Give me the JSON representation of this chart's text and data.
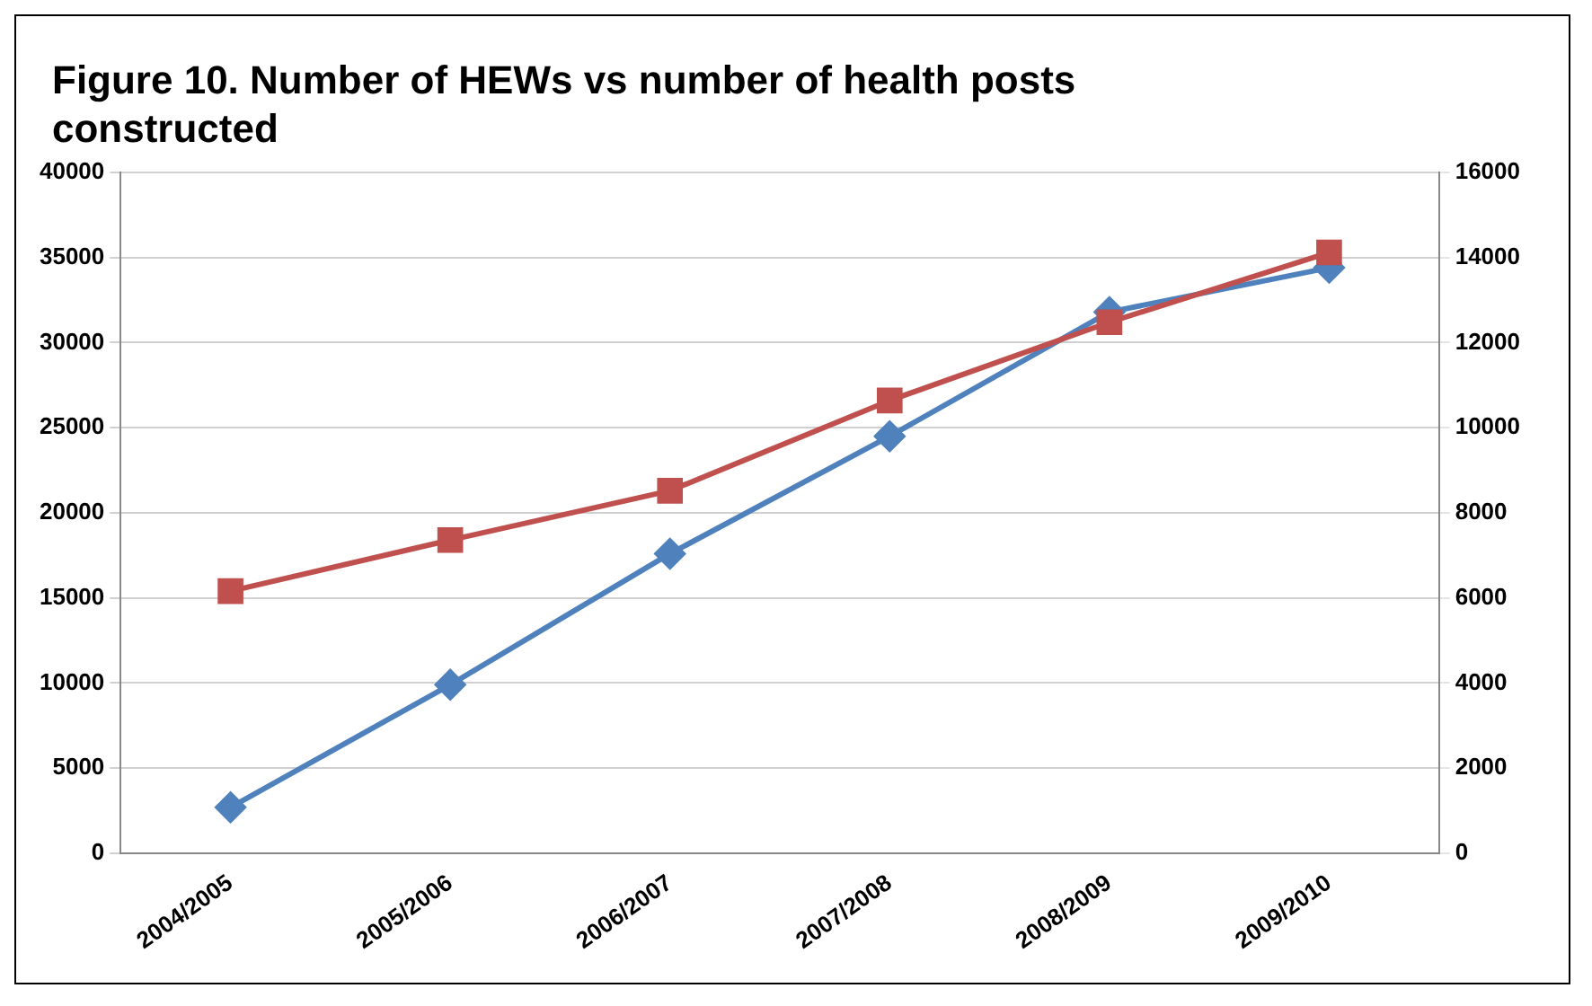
{
  "chart_data": {
    "type": "line",
    "title": "Figure 10. Number of HEWs vs number of health posts constructed",
    "categories": [
      "2004/2005",
      "2005/2006",
      "2006/2007",
      "2007/2008",
      "2008/2009",
      "2009/2010"
    ],
    "series": [
      {
        "color": "#4f81bd",
        "marker": "diamond",
        "values": [
          2700,
          9900,
          17600,
          24500,
          31800,
          34400
        ]
      },
      {
        "color": "#c0504d",
        "marker": "square",
        "axis": "y2",
        "values": [
          6160,
          7360,
          8520,
          10640,
          12480,
          14120
        ]
      }
    ],
    "ylim": [
      0,
      40000
    ],
    "yticks": [
      0,
      5000,
      10000,
      15000,
      20000,
      25000,
      30000,
      35000,
      40000
    ],
    "y2lim": [
      0,
      16000
    ],
    "y2ticks": [
      0,
      2000,
      4000,
      6000,
      8000,
      10000,
      12000,
      14000,
      16000
    ],
    "grid": "y",
    "legend": false,
    "line_style": "solid"
  }
}
